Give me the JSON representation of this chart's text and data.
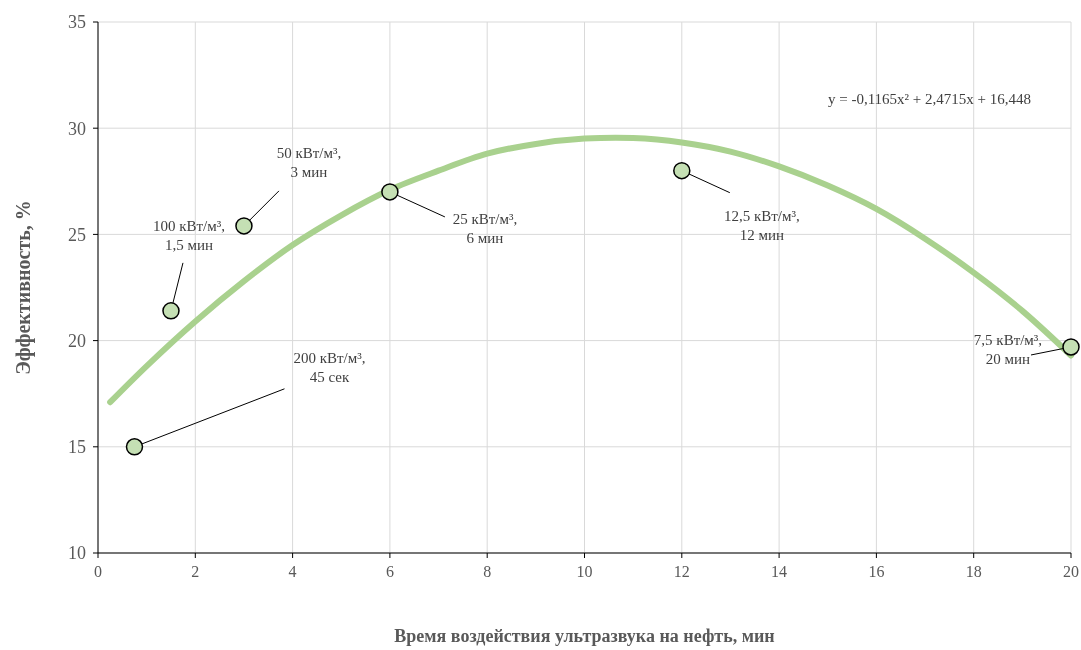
{
  "chart_data": {
    "type": "scatter",
    "xlabel": "Время воздействия ультразвука  на нефть, мин",
    "ylabel": "Эффективность,  %",
    "xlim": [
      0,
      20
    ],
    "xticks": [
      0,
      2,
      4,
      6,
      8,
      10,
      12,
      14,
      16,
      18,
      20
    ],
    "ylim": [
      10,
      35
    ],
    "yticks": [
      10,
      15,
      20,
      25,
      30,
      35
    ],
    "grid": true,
    "series": [
      {
        "type": "line",
        "color": "#a9d18e",
        "x": [
          0.25,
          1,
          2,
          3,
          4,
          5,
          6,
          7,
          8,
          9,
          10,
          11,
          12,
          13,
          14,
          15,
          16,
          17,
          18,
          19,
          20
        ],
        "values": [
          17.1,
          18.8,
          20.9,
          22.8,
          24.5,
          25.9,
          27.1,
          28.0,
          28.8,
          29.26,
          29.51,
          29.54,
          29.33,
          28.9,
          28.2,
          27.3,
          26.2,
          24.8,
          23.2,
          21.4,
          19.3
        ]
      },
      {
        "marker": "circle",
        "color": "#c5e0b4",
        "x": [
          0.75,
          1.5,
          3,
          6,
          12,
          20
        ],
        "values": [
          15,
          21.4,
          25.4,
          27,
          28,
          19.7
        ]
      }
    ],
    "annotations": [
      {
        "text": "200 кВт/м³,\n45 сек",
        "x": 0.75,
        "y": 15
      },
      {
        "text": "100 кВт/м³,\n1,5 мин",
        "x": 1.5,
        "y": 21.4
      },
      {
        "text": "50 кВт/м³,\n3 мин",
        "x": 3,
        "y": 25.4
      },
      {
        "text": "25 кВт/м³,\n6 мин",
        "x": 6,
        "y": 27
      },
      {
        "text": "12,5 кВт/м³,\n12 мин",
        "x": 12,
        "y": 28
      },
      {
        "text": "7,5 кВт/м³,\n20 мин",
        "x": 20,
        "y": 19.7
      },
      "y = -0,1165x² + 2,4715x + 16,448"
    ]
  }
}
